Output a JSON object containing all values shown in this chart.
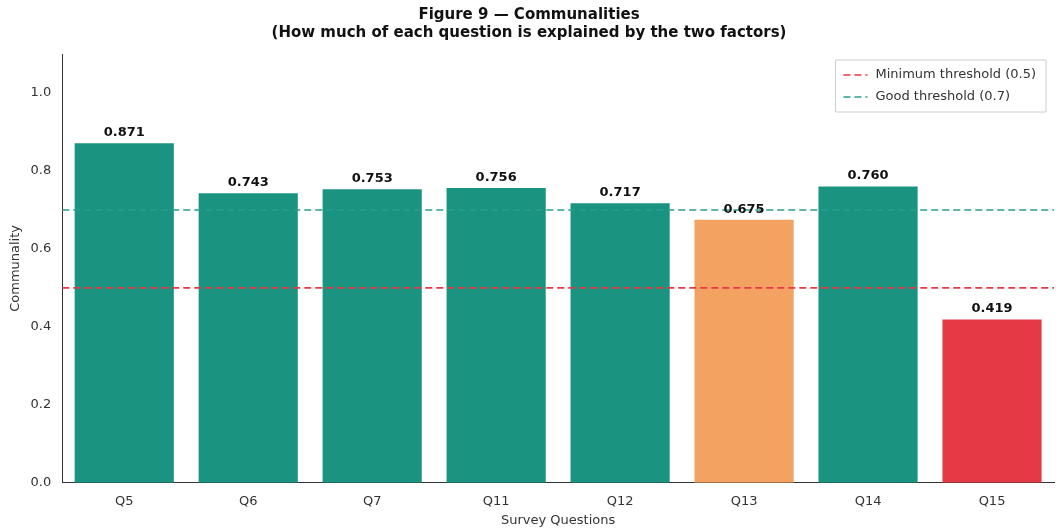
{
  "chart_data": {
    "type": "bar",
    "title": "Figure 9 — Communalities",
    "subtitle": "(How much of each question is explained by the two factors)",
    "xlabel": "Survey Questions",
    "ylabel": "Communality",
    "categories": [
      "Q5",
      "Q6",
      "Q7",
      "Q11",
      "Q12",
      "Q13",
      "Q14",
      "Q15"
    ],
    "values": [
      0.871,
      0.743,
      0.753,
      0.756,
      0.717,
      0.675,
      0.76,
      0.419
    ],
    "value_labels": [
      "0.871",
      "0.743",
      "0.753",
      "0.756",
      "0.717",
      "0.675",
      "0.760",
      "0.419"
    ],
    "colors": [
      "#1a9480",
      "#1a9480",
      "#1a9480",
      "#1a9480",
      "#1a9480",
      "#f4a261",
      "#1a9480",
      "#e63946"
    ],
    "ylim": [
      0,
      1.1
    ],
    "yticks": [
      {
        "value": 0,
        "label": "0.0"
      },
      {
        "value": 0.2,
        "label": "0.2"
      },
      {
        "value": 0.4,
        "label": "0.4"
      },
      {
        "value": 0.6,
        "label": "0.6"
      },
      {
        "value": 0.8,
        "label": "0.8"
      },
      {
        "value": 1,
        "label": "1.0"
      }
    ],
    "ref_lines": [
      {
        "axis": "y",
        "value": 0.5,
        "label": "Minimum threshold (0.5)",
        "color": "#e63946",
        "line_style": "dashed"
      },
      {
        "axis": "y",
        "value": 0.7,
        "label": "Good threshold (0.7)",
        "color": "#2a9d8f",
        "line_style": "dashed"
      }
    ],
    "grid": false,
    "legend": "top right"
  }
}
